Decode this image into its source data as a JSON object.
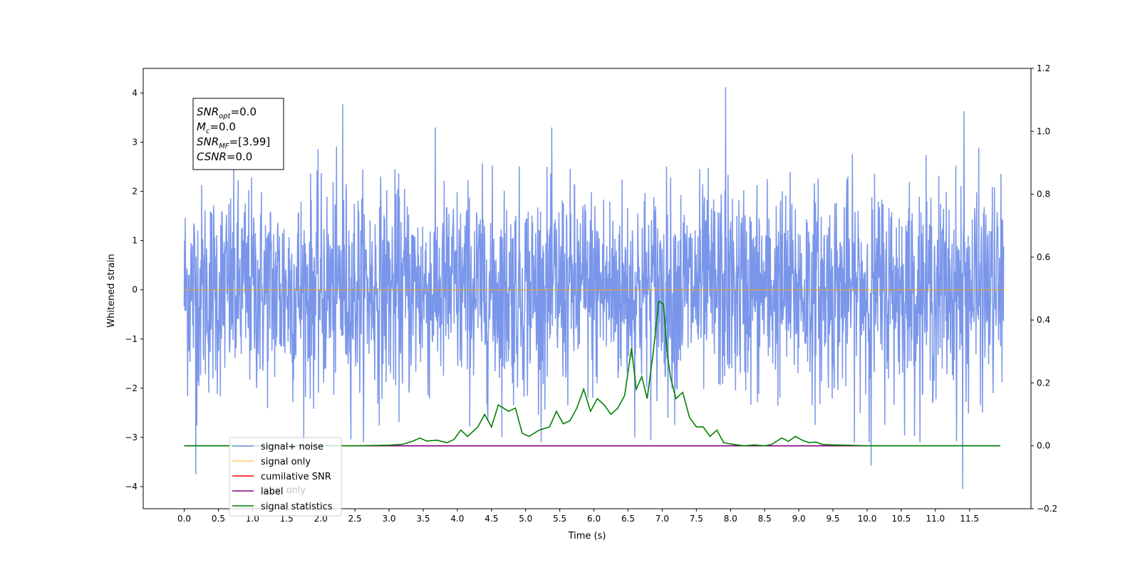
{
  "chart_data": {
    "type": "line",
    "xlabel": "Time (s)",
    "ylabel": "Whitened strain",
    "xlim": [
      -0.6,
      12.4
    ],
    "ylim": [
      -4.45,
      4.5
    ],
    "y2lim": [
      -0.2,
      1.2
    ],
    "x_ticks": [
      0.0,
      0.5,
      1.0,
      1.5,
      2.0,
      2.5,
      3.0,
      3.5,
      4.0,
      4.5,
      5.0,
      5.5,
      6.0,
      6.5,
      7.0,
      7.5,
      8.0,
      8.5,
      9.0,
      9.5,
      10.0,
      10.5,
      11.0,
      11.5
    ],
    "x_tick_labels": [
      "0.0",
      "0.5",
      "1.0",
      "1.5",
      "2.0",
      "2.5",
      "3.0",
      "3.5",
      "4.0",
      "4.5",
      "5.0",
      "5.5",
      "6.0",
      "6.5",
      "7.0",
      "7.5",
      "8.0",
      "8.5",
      "9.0",
      "9.5",
      "10.0",
      "10.5",
      "11.0",
      "11.5"
    ],
    "y_ticks": [
      -4,
      -3,
      -2,
      -1,
      0,
      1,
      2,
      3,
      4
    ],
    "y_tick_labels": [
      "−4",
      "−3",
      "−2",
      "−1",
      "0",
      "1",
      "2",
      "3",
      "4"
    ],
    "y2_ticks": [
      -0.2,
      0.0,
      0.2,
      0.4,
      0.6,
      0.8,
      1.0,
      1.2
    ],
    "y2_tick_labels": [
      "−0.2",
      "0.0",
      "0.2",
      "0.4",
      "0.6",
      "0.8",
      "1.0",
      "1.2"
    ],
    "noise_trace": {
      "name": "signal+ noise",
      "color": "#4169e1",
      "x_range": [
        0.0,
        12.0
      ],
      "points": 2400,
      "approx_range": [
        -4.05,
        4.12
      ],
      "notable_peaks": [
        [
          7.93,
          4.12
        ],
        [
          2.32,
          3.77
        ],
        [
          11.42,
          3.63
        ],
        [
          0.17,
          -3.75
        ],
        [
          11.4,
          -4.05
        ],
        [
          10.06,
          -3.57
        ]
      ]
    },
    "series": [
      {
        "name": "signal only",
        "color": "#ffa500",
        "axis": "left",
        "x": [
          0.0,
          12.0
        ],
        "y": [
          0.0,
          0.0
        ]
      },
      {
        "name": "cumilative SNR",
        "color": "#ff0000",
        "axis": "right",
        "x": [],
        "y": []
      },
      {
        "name": "label",
        "color": "#800080",
        "axis": "right",
        "x": [
          0.0,
          11.95
        ],
        "y": [
          0.0,
          0.0
        ]
      },
      {
        "name": "signal statistics",
        "color": "#008000",
        "axis": "right",
        "x": [
          0.0,
          2.5,
          3.0,
          3.2,
          3.35,
          3.45,
          3.55,
          3.7,
          3.85,
          3.95,
          4.05,
          4.15,
          4.3,
          4.4,
          4.5,
          4.6,
          4.75,
          4.85,
          4.95,
          5.05,
          5.2,
          5.35,
          5.45,
          5.55,
          5.65,
          5.75,
          5.85,
          5.95,
          6.05,
          6.15,
          6.25,
          6.35,
          6.45,
          6.55,
          6.62,
          6.7,
          6.78,
          6.87,
          6.95,
          7.02,
          7.07,
          7.12,
          7.2,
          7.3,
          7.4,
          7.5,
          7.6,
          7.7,
          7.8,
          7.9,
          8.0,
          8.1,
          8.2,
          8.35,
          8.5,
          8.6,
          8.75,
          8.85,
          8.95,
          9.05,
          9.15,
          9.25,
          9.35,
          9.5,
          9.7,
          10.0,
          10.5,
          11.0,
          11.5,
          11.95
        ],
        "y": [
          0.0,
          0.0,
          0.002,
          0.005,
          0.015,
          0.025,
          0.015,
          0.018,
          0.01,
          0.02,
          0.05,
          0.03,
          0.06,
          0.1,
          0.06,
          0.13,
          0.11,
          0.12,
          0.04,
          0.03,
          0.05,
          0.06,
          0.11,
          0.07,
          0.08,
          0.12,
          0.18,
          0.11,
          0.15,
          0.13,
          0.1,
          0.12,
          0.16,
          0.31,
          0.18,
          0.22,
          0.15,
          0.3,
          0.46,
          0.45,
          0.3,
          0.22,
          0.15,
          0.17,
          0.09,
          0.06,
          0.06,
          0.03,
          0.05,
          0.01,
          0.006,
          0.003,
          0.0,
          0.003,
          0.0,
          0.004,
          0.025,
          0.014,
          0.03,
          0.018,
          0.01,
          0.012,
          0.004,
          0.003,
          0.002,
          0.0,
          0.0,
          0.0,
          0.0,
          0.0
        ]
      }
    ],
    "legend_position": "lower-left",
    "legend": [
      {
        "label": "signal+ noise",
        "color": "#4169e1"
      },
      {
        "label": "signal only",
        "color": "#ffa500"
      },
      {
        "label": "cumilative SNR",
        "color": "#ff0000"
      },
      {
        "label": "label",
        "color": "#800080"
      },
      {
        "label": "signal statistics",
        "color": "#008000"
      }
    ],
    "legend_hidden_text": [
      "label only"
    ],
    "annotation": {
      "lines": [
        {
          "sym": "SNR",
          "sub": "opt",
          "value": "=0.0"
        },
        {
          "sym": "M",
          "sub": "c",
          "value": "=0.0"
        },
        {
          "sym": "SNR",
          "sub": "MF",
          "value": "=[3.99]"
        },
        {
          "sym": "CSNR",
          "sub": "",
          "value": "=0.0"
        }
      ]
    }
  }
}
